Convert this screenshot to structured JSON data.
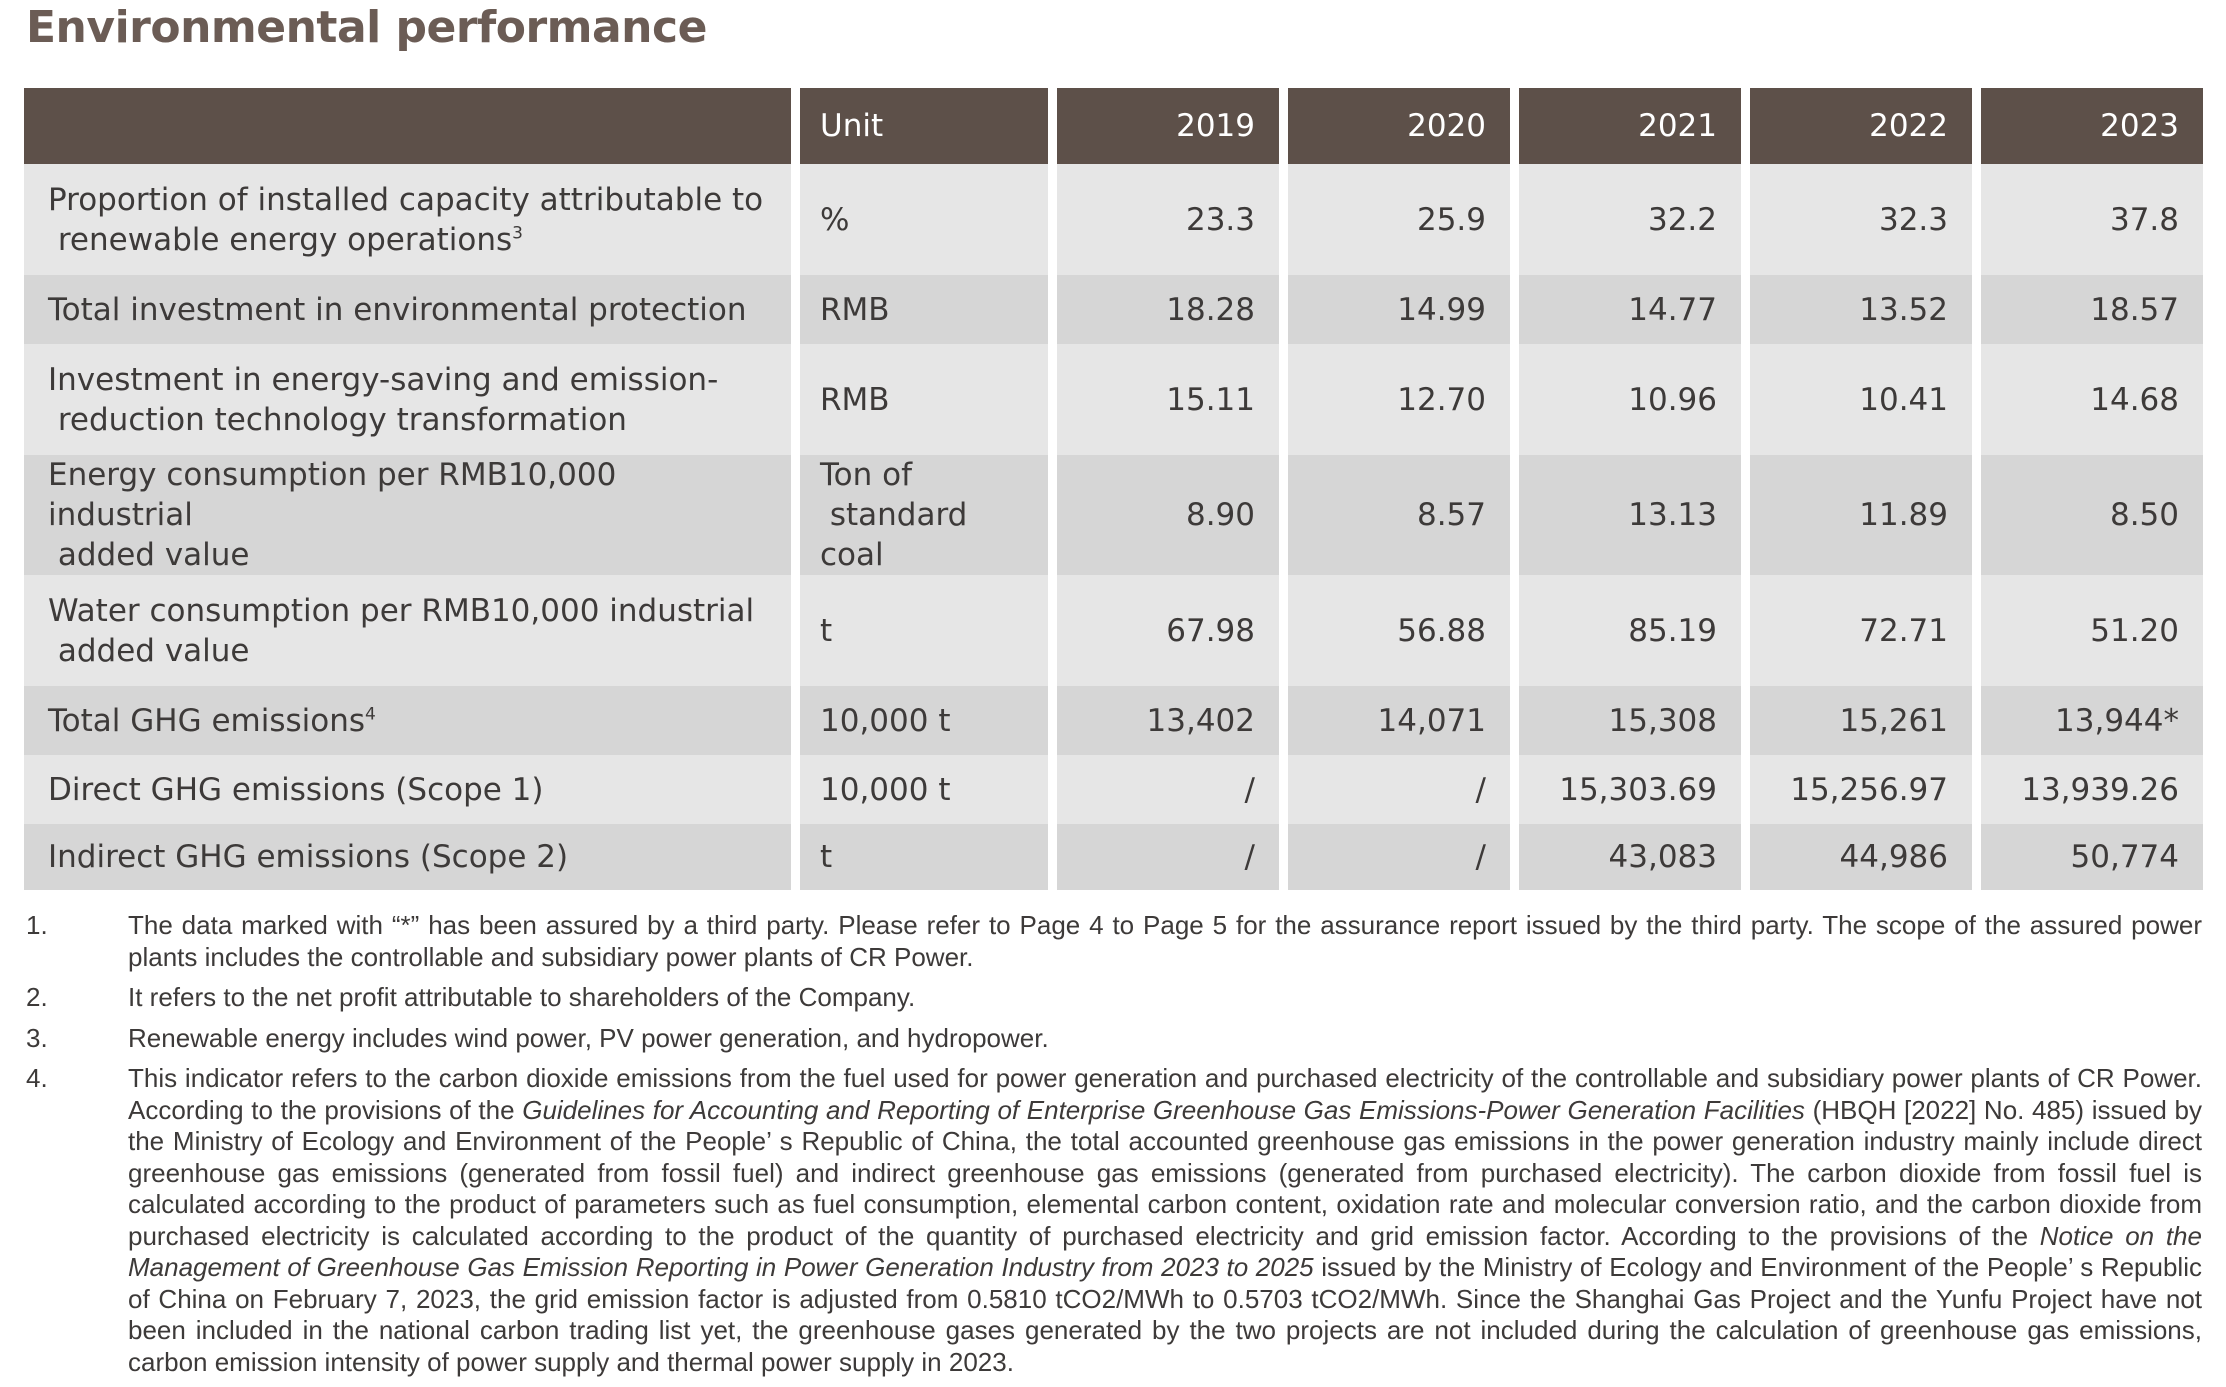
{
  "title": "Environmental performance",
  "table": {
    "headers": [
      "",
      "Unit",
      "2019",
      "2020",
      "2021",
      "2022",
      "2023"
    ],
    "rows": [
      {
        "indicator_line1": "Proportion of installed capacity attributable to",
        "indicator_line2": "renewable energy operations",
        "footnote": "3",
        "unit_line1": "%",
        "unit_line2": "",
        "values": [
          "23.3",
          "25.9",
          "32.2",
          "32.3",
          "37.8"
        ]
      },
      {
        "indicator_line1": "Total investment in environmental protection",
        "indicator_line2": "",
        "footnote": "",
        "unit_line1": "RMB",
        "unit_line2": "",
        "values": [
          "18.28",
          "14.99",
          "14.77",
          "13.52",
          "18.57"
        ]
      },
      {
        "indicator_line1": "Investment in energy-saving and emission-",
        "indicator_line2": "reduction technology transformation",
        "footnote": "",
        "unit_line1": "RMB",
        "unit_line2": "",
        "values": [
          "15.11",
          "12.70",
          "10.96",
          "10.41",
          "14.68"
        ]
      },
      {
        "indicator_line1": "Energy consumption per RMB10,000 industrial",
        "indicator_line2": "added value",
        "footnote": "",
        "unit_line1": "Ton of",
        "unit_line2": "standard coal",
        "values": [
          "8.90",
          "8.57",
          "13.13",
          "11.89",
          "8.50"
        ]
      },
      {
        "indicator_line1": "Water consumption per RMB10,000 industrial",
        "indicator_line2": "added value",
        "footnote": "",
        "unit_line1": "t",
        "unit_line2": "",
        "values": [
          "67.98",
          "56.88",
          "85.19",
          "72.71",
          "51.20"
        ]
      },
      {
        "indicator_line1": "Total GHG emissions",
        "indicator_line2": "",
        "footnote": "4",
        "unit_line1": "10,000 t",
        "unit_line2": "",
        "values": [
          "13,402",
          "14,071",
          "15,308",
          "15,261",
          "13,944*"
        ]
      },
      {
        "indicator_line1": "Direct GHG emissions (Scope 1)",
        "indicator_line2": "",
        "footnote": "",
        "unit_line1": "10,000 t",
        "unit_line2": "",
        "values": [
          "/",
          "/",
          "15,303.69",
          "15,256.97",
          "13,939.26"
        ]
      },
      {
        "indicator_line1": "Indirect GHG emissions (Scope 2)",
        "indicator_line2": "",
        "footnote": "",
        "unit_line1": "t",
        "unit_line2": "",
        "values": [
          "/",
          "/",
          "43,083",
          "44,986",
          "50,774"
        ]
      }
    ]
  },
  "notes": [
    {
      "num": "1.",
      "parts": [
        {
          "text": "The data marked with “*” has been assured by a third party. Please refer to Page 4 to Page 5 for the assurance report issued by the third party. The scope of the assured power plants includes the controllable and subsidiary power plants of CR Power.",
          "italic": false
        }
      ]
    },
    {
      "num": "2.",
      "parts": [
        {
          "text": "It refers to the net profit attributable to shareholders of the Company.",
          "italic": false
        }
      ]
    },
    {
      "num": "3.",
      "parts": [
        {
          "text": "Renewable energy includes wind power, PV power generation, and hydropower.",
          "italic": false
        }
      ]
    },
    {
      "num": "4.",
      "parts": [
        {
          "text": "This indicator refers to the carbon dioxide emissions from the fuel used for power generation and purchased electricity of the controllable and subsidiary power plants of CR Power. According to the provisions of the ",
          "italic": false
        },
        {
          "text": "Guidelines for Accounting and Reporting of Enterprise Greenhouse Gas Emissions-Power Generation Facilities",
          "italic": true
        },
        {
          "text": " (HBQH [2022] No. 485) issued by the Ministry of Ecology and Environment of the People’ s Republic of China, the total accounted greenhouse gas emissions in the power generation industry mainly include direct greenhouse gas emissions (generated from fossil fuel) and indirect greenhouse gas emissions (generated from purchased electricity). The carbon dioxide from fossil fuel is calculated according to the product of parameters such as fuel consumption, elemental carbon content, oxidation rate and molecular conversion ratio, and the carbon dioxide from purchased electricity is calculated according to the product of the quantity of purchased electricity and grid emission factor. According to the provisions of the ",
          "italic": false
        },
        {
          "text": "Notice on the Management of Greenhouse Gas Emission Reporting in Power Generation Industry from 2023 to 2025",
          "italic": true
        },
        {
          "text": " issued by the Ministry of Ecology and Environment of the People’ s Republic of China on February 7, 2023, the grid emission factor is adjusted from 0.5810 tCO2/MWh to 0.5703 tCO2/MWh. Since the Shanghai Gas Project and the Yunfu Project have not been included in the national carbon trading list yet, the greenhouse gases generated by the two projects are not included during the calculation of greenhouse gas emissions, carbon emission intensity of power supply and thermal power supply in 2023.",
          "italic": false
        }
      ]
    }
  ]
}
